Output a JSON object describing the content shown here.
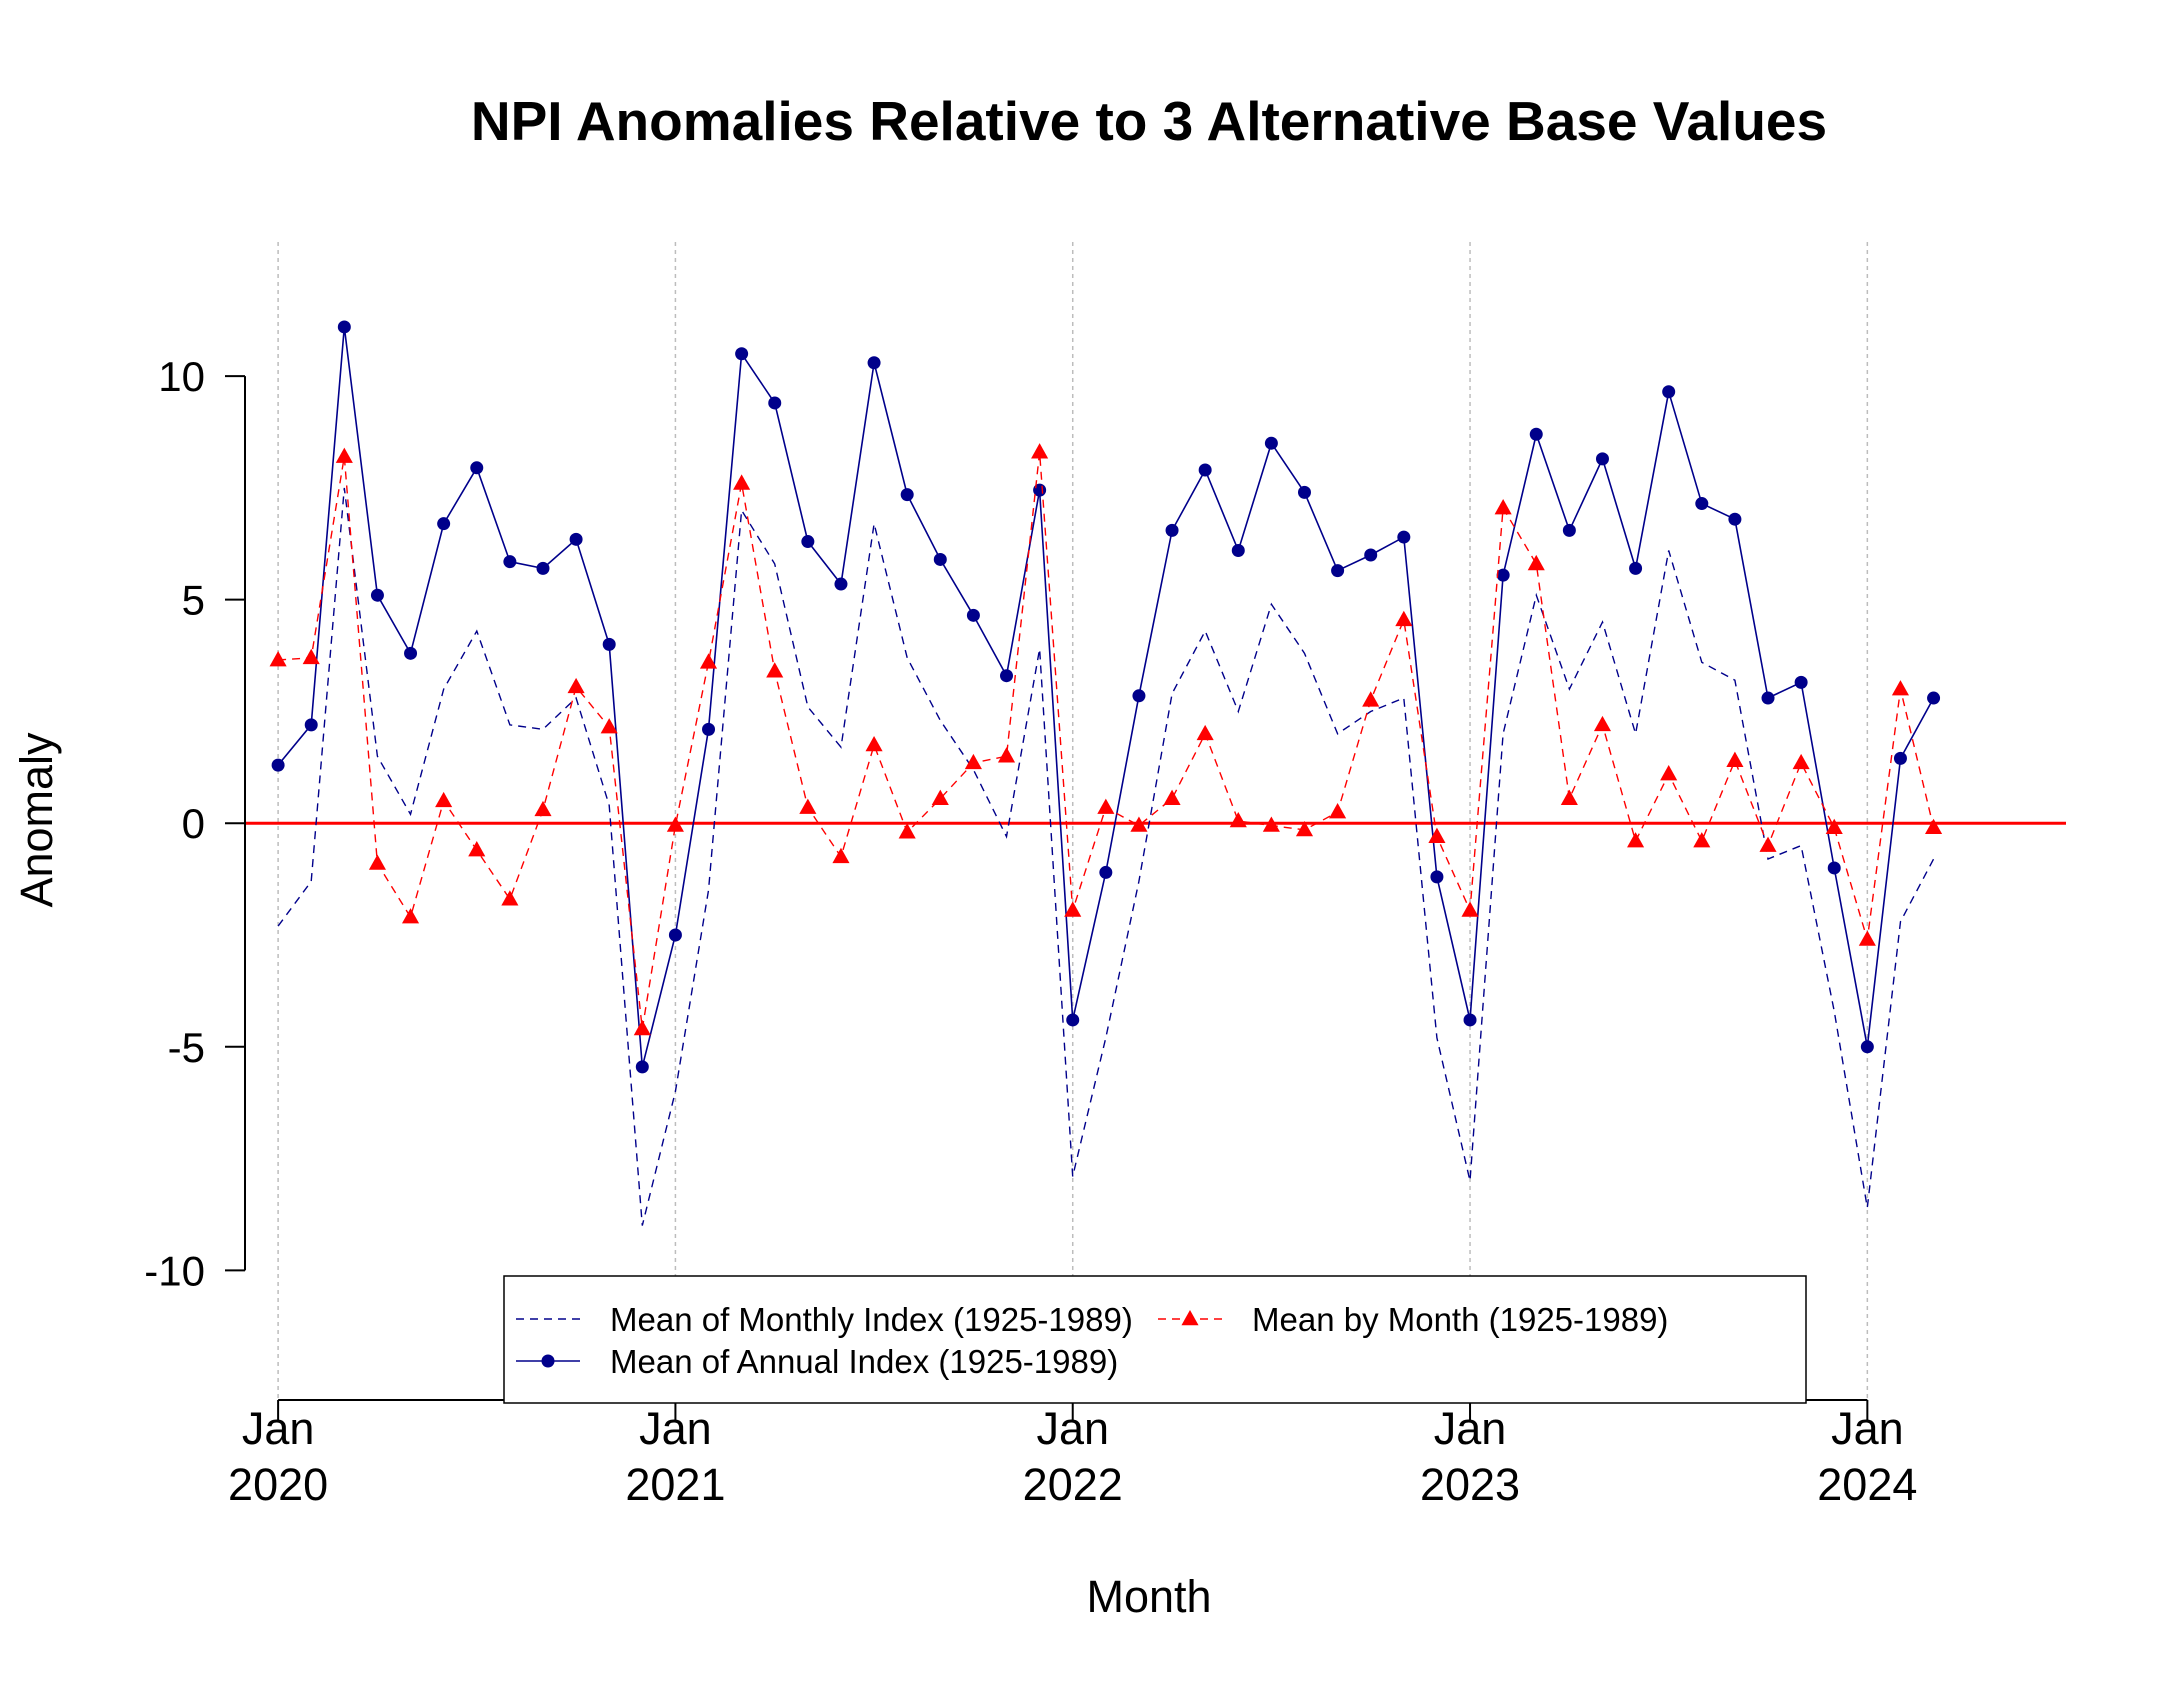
{
  "chart_data": {
    "type": "line",
    "title": "NPI Anomalies Relative to 3 Alternative Base Values",
    "xlabel": "Month",
    "ylabel": "Anomaly",
    "x": [
      "2020-01",
      "2020-02",
      "2020-03",
      "2020-04",
      "2020-05",
      "2020-06",
      "2020-07",
      "2020-08",
      "2020-09",
      "2020-10",
      "2020-11",
      "2020-12",
      "2021-01",
      "2021-02",
      "2021-03",
      "2021-04",
      "2021-05",
      "2021-06",
      "2021-07",
      "2021-08",
      "2021-09",
      "2021-10",
      "2021-11",
      "2021-12",
      "2022-01",
      "2022-02",
      "2022-03",
      "2022-04",
      "2022-05",
      "2022-06",
      "2022-07",
      "2022-08",
      "2022-09",
      "2022-10",
      "2022-11",
      "2022-12",
      "2023-01",
      "2023-02",
      "2023-03",
      "2023-04",
      "2023-05",
      "2023-06",
      "2023-07",
      "2023-08",
      "2023-09",
      "2023-10",
      "2023-11",
      "2023-12",
      "2024-01",
      "2024-02",
      "2024-03"
    ],
    "x_ticks": [
      {
        "month": "Jan",
        "year": "2020",
        "x": "2020-01"
      },
      {
        "month": "Jan",
        "year": "2021",
        "x": "2021-01"
      },
      {
        "month": "Jan",
        "year": "2022",
        "x": "2022-01"
      },
      {
        "month": "Jan",
        "year": "2023",
        "x": "2023-01"
      },
      {
        "month": "Jan",
        "year": "2024",
        "x": "2024-01"
      }
    ],
    "y_ticks": [
      10,
      5,
      0,
      -5,
      -10
    ],
    "y_tick_labels": [
      "10",
      "5",
      "0",
      "-5",
      "-10"
    ],
    "ylim": [
      -12.9,
      13.0
    ],
    "xlim": [
      "2019-12",
      "2024-07"
    ],
    "grid": "vertical dotted at January",
    "reference_line": {
      "y": 0,
      "color": "#ff0000"
    },
    "legend_position": "bottom-center",
    "series": [
      {
        "name": "Mean of Monthly Index (1925-1989)",
        "style": "dashed",
        "marker": "none",
        "color": "#00008b",
        "values": [
          -2.3,
          -1.3,
          7.5,
          1.5,
          0.2,
          3.0,
          4.3,
          2.2,
          2.1,
          2.8,
          0.4,
          -9.0,
          -6.0,
          -1.5,
          7.0,
          5.8,
          2.6,
          1.7,
          6.7,
          3.7,
          2.3,
          1.2,
          -0.3,
          3.9,
          -7.9,
          -4.8,
          -1.3,
          2.9,
          4.3,
          2.5,
          4.9,
          3.8,
          2.0,
          2.5,
          2.8,
          -4.8,
          -8.0,
          2.0,
          5.1,
          3.0,
          4.5,
          2.0,
          6.1,
          3.6,
          3.2,
          -0.8,
          -0.5,
          -4.2,
          -8.6,
          -2.2,
          -0.8
        ]
      },
      {
        "name": "Mean of Annual Index (1925-1989)",
        "style": "solid",
        "marker": "circle",
        "color": "#00008b",
        "values": [
          1.3,
          2.2,
          11.1,
          5.1,
          3.8,
          6.7,
          7.95,
          5.85,
          5.7,
          6.35,
          4.0,
          -5.45,
          -2.5,
          2.1,
          10.5,
          9.4,
          6.3,
          5.35,
          10.3,
          7.35,
          5.9,
          4.65,
          3.3,
          7.45,
          -4.4,
          -1.1,
          2.85,
          6.55,
          7.9,
          6.1,
          8.5,
          7.4,
          5.65,
          6.0,
          6.4,
          -1.2,
          -4.4,
          5.55,
          8.7,
          6.55,
          8.15,
          5.7,
          9.65,
          7.15,
          6.8,
          2.8,
          3.15,
          -1.0,
          -5.0,
          1.45,
          2.8
        ]
      },
      {
        "name": "Mean by Month (1925-1989)",
        "style": "dashed",
        "marker": "triangle",
        "color": "#ff0000",
        "values": [
          3.65,
          3.7,
          8.2,
          -0.9,
          -2.1,
          0.5,
          -0.6,
          -1.7,
          0.3,
          3.05,
          2.15,
          -4.6,
          -0.05,
          3.6,
          7.6,
          3.4,
          0.35,
          -0.75,
          1.75,
          -0.2,
          0.55,
          1.35,
          1.5,
          8.3,
          -1.95,
          0.35,
          -0.05,
          0.55,
          2.0,
          0.05,
          -0.05,
          -0.15,
          0.25,
          2.75,
          4.55,
          -0.3,
          -1.95,
          7.05,
          5.8,
          0.55,
          2.2,
          -0.4,
          1.1,
          -0.4,
          1.4,
          -0.5,
          1.35,
          -0.1,
          -2.6,
          3.0,
          -0.1
        ]
      }
    ]
  }
}
